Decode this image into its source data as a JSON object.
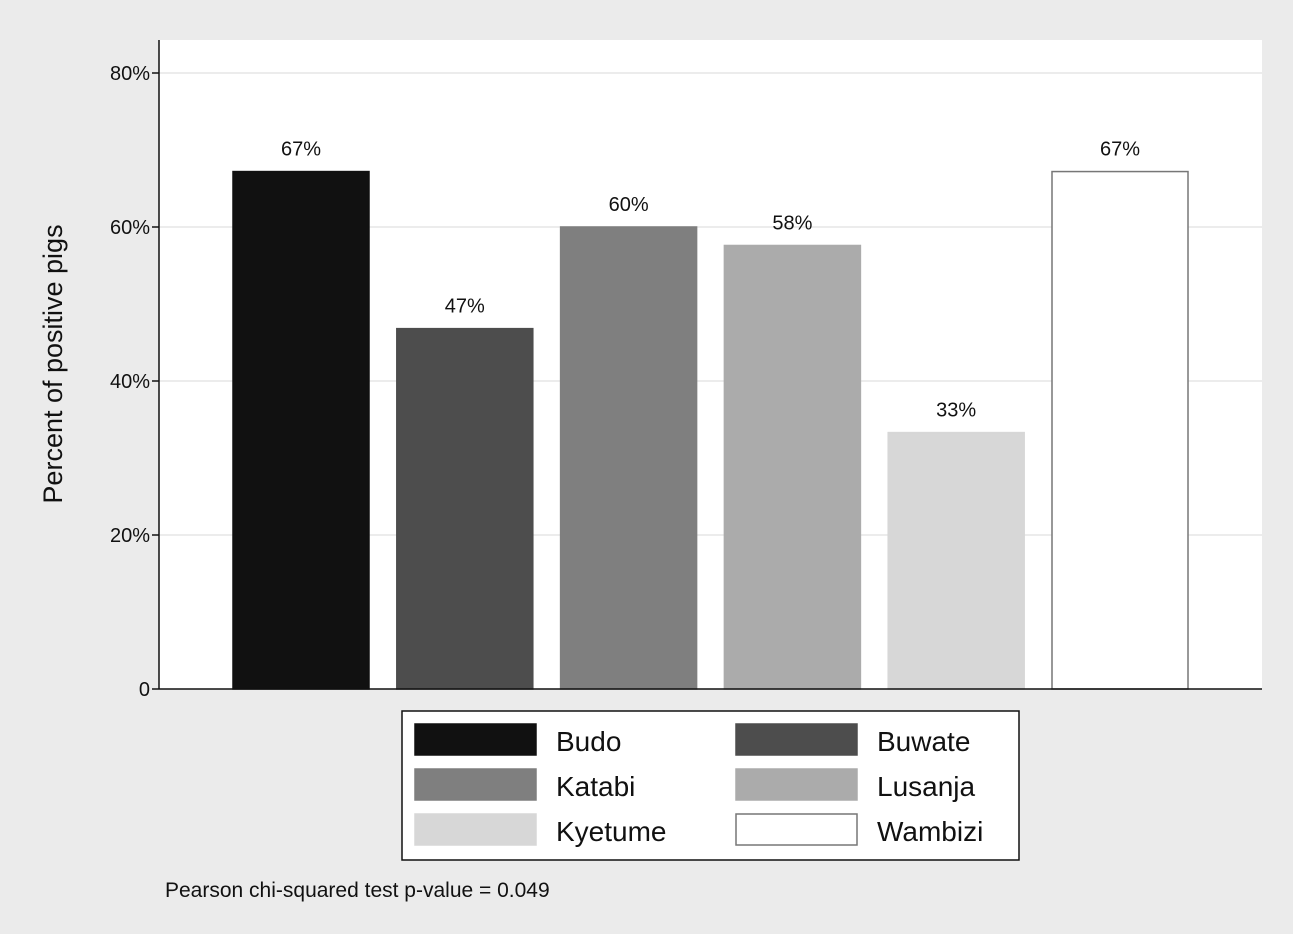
{
  "chart_data": {
    "type": "bar",
    "ylabel": "Percent of positive pigs",
    "ylim": [
      0,
      84
    ],
    "yticks": [
      {
        "value": 0,
        "label": "0"
      },
      {
        "value": 20,
        "label": "20%"
      },
      {
        "value": 40,
        "label": "40%"
      },
      {
        "value": 60,
        "label": "60%"
      },
      {
        "value": 80,
        "label": "80%"
      }
    ],
    "grid": true,
    "legend_position": "bottom",
    "categories": [
      "Budo",
      "Buwate",
      "Katabi",
      "Lusanja",
      "Kyetume",
      "Wambizi"
    ],
    "values": [
      67.2,
      46.8,
      60.0,
      57.6,
      33.3,
      67.2
    ],
    "data_labels": [
      "67%",
      "47%",
      "60%",
      "58%",
      "33%",
      "67%"
    ],
    "colors": [
      "#111111",
      "#4d4d4d",
      "#7f7f7f",
      "#ababab",
      "#d7d7d7",
      "#ffffff"
    ],
    "outline_colors": [
      "#111111",
      "#4d4d4d",
      "#7f7f7f",
      "#ababab",
      "#d7d7d7",
      "#777777"
    ],
    "note": "Pearson chi-squared test p-value = 0.049"
  }
}
